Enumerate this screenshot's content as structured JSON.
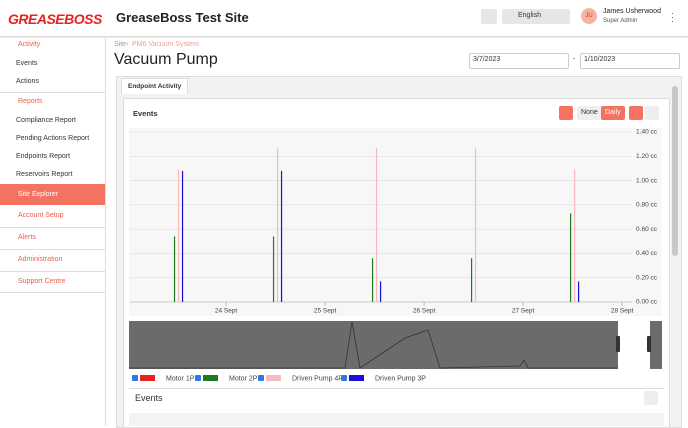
{
  "header": {
    "logo": "GREASEBOSS",
    "site_title": "GreaseBoss Test Site",
    "language": "English",
    "avatar_initials": "JU",
    "user_name": "James Usherwood",
    "user_role": "Super Admin"
  },
  "sidebar": {
    "items": [
      {
        "label": "Activity",
        "children": [
          "Events",
          "Actions"
        ]
      },
      {
        "label": "Reports",
        "children": [
          "Compliance Report",
          "Pending Actions Report",
          "Endpoints Report",
          "Reservoirs Report"
        ]
      },
      {
        "label": "Site Explorer"
      },
      {
        "label": "Account Setup"
      },
      {
        "label": "Alerts"
      },
      {
        "label": "Administration"
      },
      {
        "label": "Support Centre"
      }
    ]
  },
  "page": {
    "breadcrumb": [
      "Site",
      "›",
      "PM6 Vacuum System"
    ],
    "title": "Vacuum Pump",
    "date_from": "3/7/2023",
    "date_separator": "-",
    "date_to": "1/10/2023",
    "tab": "Endpoint Activity",
    "card_title": "Events",
    "buttons": [
      "None",
      "Daily"
    ],
    "events_section_title": "Events"
  },
  "chart_data": {
    "type": "bar",
    "x": [
      23.5,
      24.5,
      25.5,
      26.5,
      27.5
    ],
    "xlim": [
      23.03,
      28.1
    ],
    "xticks": [
      {
        "value": 24,
        "label": "24 Sept"
      },
      {
        "value": 25,
        "label": "25 Sept"
      },
      {
        "value": 26,
        "label": "26 Sept"
      },
      {
        "value": 27,
        "label": "27 Sept"
      },
      {
        "value": 28,
        "label": "28 Sept"
      }
    ],
    "ylim": [
      0,
      1.4
    ],
    "yticks": [
      {
        "value": 0,
        "label": "0.00 cc"
      },
      {
        "value": 0.2,
        "label": "0.20 cc"
      },
      {
        "value": 0.4,
        "label": "0.40 cc"
      },
      {
        "value": 0.6,
        "label": "0.60 cc"
      },
      {
        "value": 0.8,
        "label": "0.80 cc"
      },
      {
        "value": 1.0,
        "label": "1.00 cc"
      },
      {
        "value": 1.2,
        "label": "1.20 cc"
      },
      {
        "value": 1.4,
        "label": "1.40 cc"
      }
    ],
    "grid": true,
    "series": [
      {
        "name": "Motor 1P",
        "color": "#e8231f",
        "values": [
          null,
          null,
          null,
          null,
          null
        ]
      },
      {
        "name": "Motor 2P",
        "color": "#1e7a1e",
        "values": [
          0.54,
          0.54,
          0.36,
          0.36,
          0.73
        ]
      },
      {
        "name": "Driven Pump 4P",
        "color": "#f7b8c0",
        "values": [
          1.09,
          1.27,
          1.27,
          1.27,
          1.09
        ]
      },
      {
        "name": "Driven Pump 3P",
        "color": "#1a10d8",
        "values": [
          1.08,
          1.08,
          0.17,
          null,
          0.17
        ]
      }
    ]
  }
}
